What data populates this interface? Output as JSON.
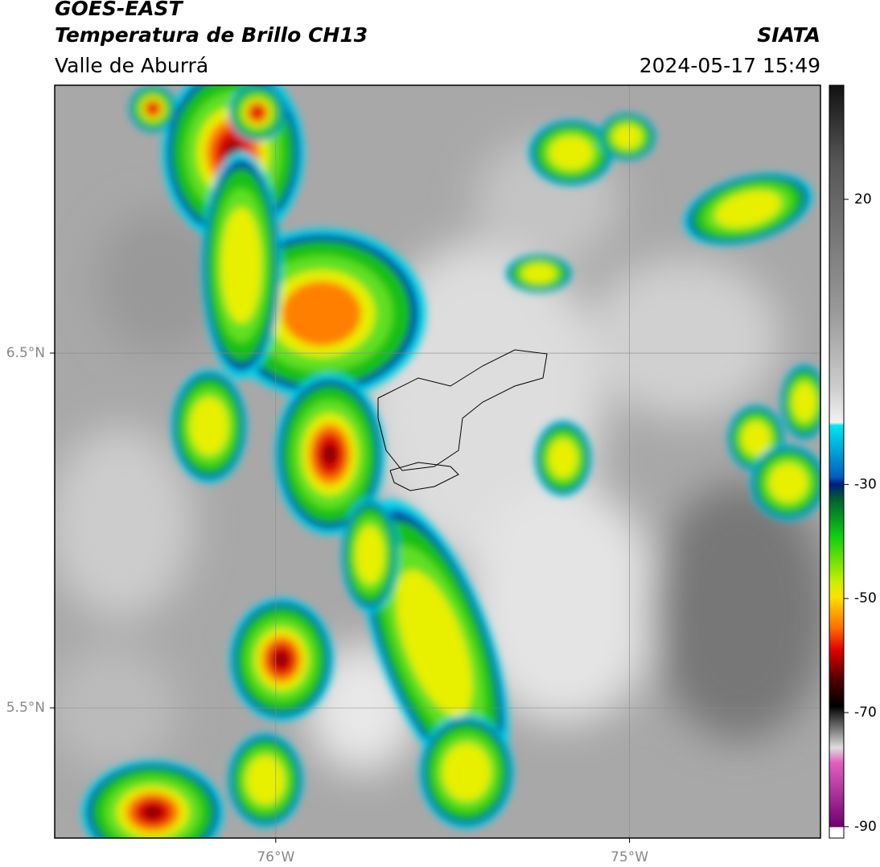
{
  "header": {
    "satellite": "GOES-EAST",
    "product": "Temperatura de Brillo CH13",
    "region": "Valle de Aburrá",
    "agency": "SIATA",
    "datetime": "2024-05-17 15:49"
  },
  "map": {
    "xlim": [
      -76.625,
      -74.46
    ],
    "ylim": [
      5.133,
      7.255
    ],
    "xticks": [
      {
        "value": -76,
        "label": "76°W"
      },
      {
        "value": -75,
        "label": "75°W"
      }
    ],
    "yticks": [
      {
        "value": 6.5,
        "label": "6.5°N"
      },
      {
        "value": 5.5,
        "label": "5.5°N"
      }
    ],
    "grid": true
  },
  "colorbar": {
    "lim": [
      -92,
      40
    ],
    "ticks": [
      20,
      -30,
      -50,
      -70,
      -90
    ]
  }
}
